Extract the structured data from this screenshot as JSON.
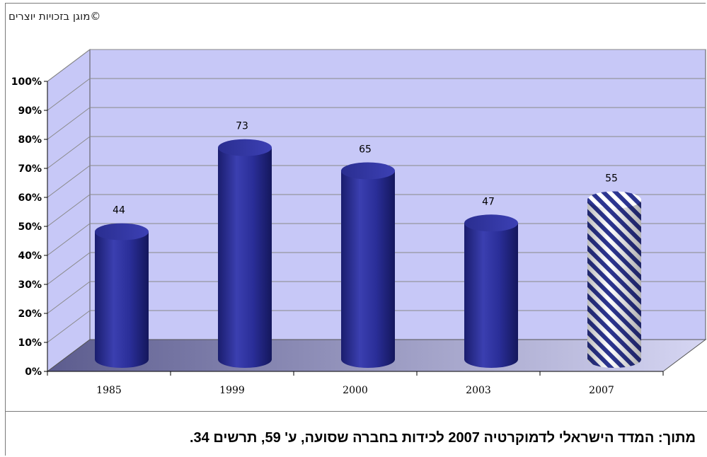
{
  "copyright": "©מוגן בזכויות יוצרים",
  "source": "מתוך: המדד הישראלי לדמוקרטיה 2007 לכידות בחברה שסועה, ע' 59, תרשים 34.",
  "chart_data": {
    "type": "bar",
    "categories": [
      "1985",
      "1999",
      "2000",
      "2003",
      "2007"
    ],
    "values": [
      44,
      73,
      65,
      47,
      55
    ],
    "value_labels": [
      "44",
      "73",
      "65",
      "47",
      "55"
    ],
    "y_ticks": [
      "0%",
      "10%",
      "20%",
      "30%",
      "40%",
      "50%",
      "60%",
      "70%",
      "80%",
      "90%",
      "100%"
    ],
    "ylim": [
      0,
      100
    ],
    "grid": true,
    "bar_style": [
      "solid",
      "solid",
      "solid",
      "solid",
      "hatched"
    ],
    "colors": {
      "bar": "#262a8c",
      "wall": "#c7c8f7",
      "floor": "#6a6aa0",
      "hatch": "#2c3590"
    }
  }
}
